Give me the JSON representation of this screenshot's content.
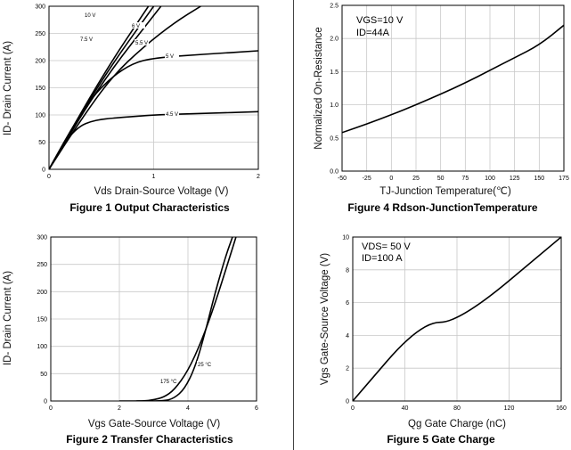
{
  "chart_data": [
    {
      "id": "fig1",
      "type": "line",
      "title": "Figure 1 Output Characteristics",
      "xlabel": "Vds Drain-Source Voltage (V)",
      "ylabel": "ID- Drain Current (A)",
      "xlim": [
        0,
        2
      ],
      "ylim": [
        0,
        300
      ],
      "xticks": [
        0,
        1,
        2
      ],
      "yticks": [
        0,
        50,
        100,
        150,
        200,
        250,
        300
      ],
      "series": [
        {
          "name": "10 V",
          "label": "10 V",
          "x": [
            0,
            0.5,
            0.95
          ],
          "y": [
            0,
            170,
            300
          ]
        },
        {
          "name": "6 V",
          "label": "6 V",
          "x": [
            0,
            0.5,
            1.07
          ],
          "y": [
            0,
            160,
            300
          ]
        },
        {
          "name": "7.5 V",
          "label": "7.5 V",
          "x": [
            0,
            0.5,
            1.0
          ],
          "y": [
            0,
            165,
            300
          ]
        },
        {
          "name": "5.5 V",
          "label": "5.5 V",
          "x": [
            0,
            0.3,
            0.6,
            0.9,
            1.2,
            1.45
          ],
          "y": [
            0,
            90,
            170,
            225,
            270,
            300
          ]
        },
        {
          "name": "5 V",
          "label": "5 V",
          "x": [
            0,
            0.2,
            0.4,
            0.6,
            0.8,
            1.0,
            1.5,
            2.0
          ],
          "y": [
            0,
            70,
            130,
            170,
            195,
            205,
            212,
            218
          ]
        },
        {
          "name": "4.5 V",
          "label": "4.5 V",
          "x": [
            0,
            0.1,
            0.2,
            0.3,
            0.4,
            0.5,
            0.6,
            0.8,
            1.0,
            1.5,
            2.0
          ],
          "y": [
            0,
            35,
            62,
            80,
            88,
            92,
            94,
            97,
            100,
            103,
            106
          ]
        }
      ]
    },
    {
      "id": "fig2",
      "type": "line",
      "title": "Figure 2 Transfer Characteristics",
      "xlabel": "Vgs Gate-Source Voltage (V)",
      "ylabel": "ID- Drain Current (A)",
      "xlim": [
        0,
        6
      ],
      "ylim": [
        0,
        300
      ],
      "xticks": [
        0,
        2,
        4,
        6
      ],
      "yticks": [
        0,
        50,
        100,
        150,
        200,
        250,
        300
      ],
      "series": [
        {
          "name": "175 °C",
          "label": "175 °C",
          "x": [
            2.0,
            2.7,
            3.0,
            3.3,
            3.6,
            4.0,
            4.4,
            4.8,
            5.2,
            5.4
          ],
          "y": [
            0,
            0,
            2,
            7,
            20,
            55,
            110,
            180,
            260,
            300
          ]
        },
        {
          "name": "25 °C",
          "label": "25 °C",
          "x": [
            2.5,
            3.3,
            3.6,
            3.9,
            4.2,
            4.5,
            4.8,
            5.1,
            5.3
          ],
          "y": [
            0,
            0,
            5,
            22,
            60,
            125,
            200,
            265,
            300
          ]
        }
      ]
    },
    {
      "id": "fig4",
      "type": "line",
      "title": "Figure 4 Rdson-JunctionTemperature",
      "xlabel": "TJ-Junction Temperature(℃)",
      "ylabel": "Normalized On-Resistance",
      "xlim": [
        -50,
        175
      ],
      "ylim": [
        0,
        2.5
      ],
      "xticks": [
        -50,
        -25,
        0,
        25,
        50,
        75,
        100,
        125,
        150,
        175
      ],
      "yticks": [
        0.0,
        0.5,
        1.0,
        1.5,
        2.0,
        2.5
      ],
      "legend_lines": [
        "VGS=10 V",
        "ID=44A"
      ],
      "series": [
        {
          "name": "Rdson",
          "x": [
            -50,
            -25,
            0,
            25,
            50,
            75,
            100,
            125,
            150,
            175
          ],
          "y": [
            0.58,
            0.71,
            0.85,
            1.0,
            1.16,
            1.33,
            1.52,
            1.71,
            1.9,
            2.2
          ]
        }
      ]
    },
    {
      "id": "fig5",
      "type": "line",
      "title": "Figure 5 Gate Charge",
      "xlabel": "Qg Gate Charge (nC)",
      "ylabel": "Vgs Gate-Source Voltage (V)",
      "xlim": [
        0,
        160
      ],
      "ylim": [
        0,
        10
      ],
      "xticks": [
        0,
        40,
        80,
        120,
        160
      ],
      "yticks": [
        0,
        2,
        4,
        6,
        8,
        10
      ],
      "legend_lines": [
        "VDS= 50 V",
        "ID=100 A"
      ],
      "series": [
        {
          "name": "Vgs",
          "x": [
            0,
            52,
            82,
            160
          ],
          "y": [
            0,
            4.8,
            4.8,
            10
          ]
        }
      ]
    }
  ]
}
